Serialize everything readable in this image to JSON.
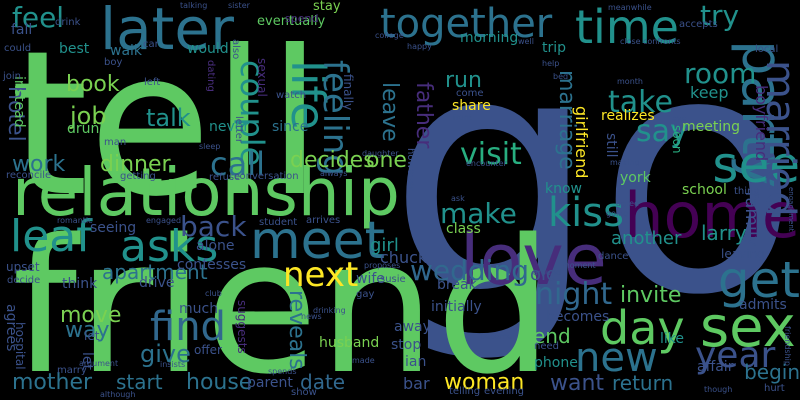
{
  "colors": {
    "background": "#000000",
    "palette": [
      "#5ec962",
      "#3b528b",
      "#21918c",
      "#440154",
      "#fde725",
      "#2c728e",
      "#472d7b",
      "#7ad151",
      "#28ae80",
      "#31688e"
    ]
  },
  "words": [
    {
      "text": "go",
      "color": "#3b528b"
    },
    {
      "text": "tell",
      "color": "#5ec962"
    },
    {
      "text": "friend",
      "color": "#5ec962"
    },
    {
      "text": "relationship",
      "color": "#5ec962"
    },
    {
      "text": "love",
      "color": "#472d7b"
    },
    {
      "text": "later",
      "color": "#2c728e"
    },
    {
      "text": "meet",
      "color": "#2c728e"
    },
    {
      "text": "home",
      "color": "#440154"
    },
    {
      "text": "party",
      "color": "#2c728e"
    },
    {
      "text": "together",
      "color": "#2c728e"
    },
    {
      "text": "time",
      "color": "#21918c"
    },
    {
      "text": "get",
      "color": "#2c728e"
    },
    {
      "text": "day",
      "color": "#5ec962"
    },
    {
      "text": "sex",
      "color": "#5ec962"
    },
    {
      "text": "see",
      "color": "#21918c"
    },
    {
      "text": "kiss",
      "color": "#21918c"
    },
    {
      "text": "married",
      "color": "#3b528b"
    },
    {
      "text": "life",
      "color": "#21918c"
    },
    {
      "text": "leaf",
      "color": "#21918c"
    },
    {
      "text": "asks",
      "color": "#21918c"
    },
    {
      "text": "next",
      "color": "#fde725"
    },
    {
      "text": "find",
      "color": "#31688e"
    },
    {
      "text": "feeling",
      "color": "#2c728e"
    },
    {
      "text": "couple",
      "color": "#21918c"
    },
    {
      "text": "new",
      "color": "#2c728e"
    },
    {
      "text": "year",
      "color": "#3b528b"
    },
    {
      "text": "night",
      "color": "#31688e"
    },
    {
      "text": "wedding",
      "color": "#31688e"
    },
    {
      "text": "make",
      "color": "#21918c"
    },
    {
      "text": "back",
      "color": "#3b528b"
    },
    {
      "text": "call",
      "color": "#2c728e"
    },
    {
      "text": "visit",
      "color": "#28ae80"
    },
    {
      "text": "take",
      "color": "#21918c"
    },
    {
      "text": "say",
      "color": "#21918c"
    },
    {
      "text": "room",
      "color": "#21918c"
    },
    {
      "text": "try",
      "color": "#21918c"
    },
    {
      "text": "feel",
      "color": "#21918c"
    },
    {
      "text": "book",
      "color": "#7ad151"
    },
    {
      "text": "talk",
      "color": "#21918c"
    },
    {
      "text": "job",
      "color": "#7ad151"
    },
    {
      "text": "work",
      "color": "#2c728e"
    },
    {
      "text": "dinner",
      "color": "#7ad151"
    },
    {
      "text": "decides",
      "color": "#7ad151"
    },
    {
      "text": "one",
      "color": "#7ad151"
    },
    {
      "text": "leave",
      "color": "#2c728e"
    },
    {
      "text": "father",
      "color": "#472d7b"
    },
    {
      "text": "marriage",
      "color": "#2c728e"
    },
    {
      "text": "run",
      "color": "#21918c"
    },
    {
      "text": "apartment",
      "color": "#2c728e"
    },
    {
      "text": "reveals",
      "color": "#2c728e"
    },
    {
      "text": "invite",
      "color": "#5ec962"
    },
    {
      "text": "move",
      "color": "#7ad151"
    },
    {
      "text": "way",
      "color": "#2c728e"
    },
    {
      "text": "give",
      "color": "#2c728e"
    },
    {
      "text": "mother",
      "color": "#2c728e"
    },
    {
      "text": "start",
      "color": "#2c728e"
    },
    {
      "text": "house",
      "color": "#2c728e"
    },
    {
      "text": "date",
      "color": "#31688e"
    },
    {
      "text": "woman",
      "color": "#fde725"
    },
    {
      "text": "end",
      "color": "#5ec962"
    },
    {
      "text": "want",
      "color": "#3b528b"
    },
    {
      "text": "return",
      "color": "#2c728e"
    },
    {
      "text": "begin",
      "color": "#2c728e"
    },
    {
      "text": "hotel",
      "color": "#3b528b"
    },
    {
      "text": "girl",
      "color": "#21918c"
    },
    {
      "text": "chuck",
      "color": "#3b528b"
    },
    {
      "text": "larry",
      "color": "#21918c"
    },
    {
      "text": "another",
      "color": "#21918c"
    },
    {
      "text": "old",
      "color": "#3b528b"
    },
    {
      "text": "family",
      "color": "#3b528b"
    },
    {
      "text": "boyfriend",
      "color": "#472d7b"
    },
    {
      "text": "girlfriend",
      "color": "#fde725"
    },
    {
      "text": "share",
      "color": "#fde725"
    },
    {
      "text": "realizes",
      "color": "#fde725"
    },
    {
      "text": "class",
      "color": "#7ad151"
    },
    {
      "text": "keep",
      "color": "#21918c"
    },
    {
      "text": "meeting",
      "color": "#7ad151"
    },
    {
      "text": "york",
      "color": "#5ec962"
    },
    {
      "text": "know",
      "color": "#21918c"
    },
    {
      "text": "school",
      "color": "#7ad151"
    },
    {
      "text": "soon",
      "color": "#28ae80"
    },
    {
      "text": "still",
      "color": "#3b528b"
    },
    {
      "text": "trip",
      "color": "#21918c"
    },
    {
      "text": "morning",
      "color": "#21918c"
    },
    {
      "text": "walk",
      "color": "#2c728e"
    },
    {
      "text": "best",
      "color": "#21918c"
    },
    {
      "text": "fall",
      "color": "#3b528b"
    },
    {
      "text": "would",
      "color": "#21918c"
    },
    {
      "text": "never",
      "color": "#21918c"
    },
    {
      "text": "since",
      "color": "#2c728e"
    },
    {
      "text": "drunk",
      "color": "#5ec962"
    },
    {
      "text": "eventually",
      "color": "#5ec962"
    },
    {
      "text": "stay",
      "color": "#7ad151"
    },
    {
      "text": "spend",
      "color": "#472d7b"
    },
    {
      "text": "instead",
      "color": "#5ec962"
    },
    {
      "text": "finally",
      "color": "#3b528b"
    },
    {
      "text": "sexual",
      "color": "#472d7b"
    },
    {
      "text": "confesses",
      "color": "#3b528b"
    },
    {
      "text": "alone",
      "color": "#3b528b"
    },
    {
      "text": "seeing",
      "color": "#3b528b"
    },
    {
      "text": "wife",
      "color": "#3b528b"
    },
    {
      "text": "break",
      "color": "#3b528b"
    },
    {
      "text": "initially",
      "color": "#3b528b"
    },
    {
      "text": "husband",
      "color": "#7ad151"
    },
    {
      "text": "suggests",
      "color": "#472d7b"
    },
    {
      "text": "parent",
      "color": "#3b528b"
    },
    {
      "text": "away",
      "color": "#3b528b"
    },
    {
      "text": "ian",
      "color": "#3b528b"
    },
    {
      "text": "bar",
      "color": "#3b528b"
    },
    {
      "text": "phone",
      "color": "#21918c"
    },
    {
      "text": "becomes",
      "color": "#3b528b"
    },
    {
      "text": "like",
      "color": "#21918c"
    },
    {
      "text": "affair",
      "color": "#3b528b"
    },
    {
      "text": "admits",
      "color": "#3b528b"
    },
    {
      "text": "drive",
      "color": "#3b528b"
    },
    {
      "text": "think",
      "color": "#3b528b"
    },
    {
      "text": "much",
      "color": "#3b528b"
    },
    {
      "text": "agrees",
      "color": "#3b528b"
    },
    {
      "text": "upset",
      "color": "#3b528b"
    },
    {
      "text": "hospital",
      "color": "#3b528b"
    },
    {
      "text": "let",
      "color": "#3b528b"
    },
    {
      "text": "offer",
      "color": "#3b528b"
    },
    {
      "text": "stop",
      "color": "#3b528b"
    },
    {
      "text": "show",
      "color": "#3b528b"
    },
    {
      "text": "dating",
      "color": "#472d7b"
    },
    {
      "text": "watch",
      "color": "#3b528b"
    },
    {
      "text": "letter",
      "color": "#3b528b"
    },
    {
      "text": "man",
      "color": "#3b528b"
    },
    {
      "text": "reconcile",
      "color": "#3b528b"
    },
    {
      "text": "refuse",
      "color": "#3b528b"
    },
    {
      "text": "conversation",
      "color": "#3b528b"
    },
    {
      "text": "leaving",
      "color": "#3b528b"
    },
    {
      "text": "dance",
      "color": "#3b528b"
    },
    {
      "text": "accepts",
      "color": "#3b528b"
    },
    {
      "text": "local",
      "color": "#3b528b"
    },
    {
      "text": "could",
      "color": "#3b528b"
    },
    {
      "text": "join",
      "color": "#3b528b"
    },
    {
      "text": "boy",
      "color": "#3b528b"
    },
    {
      "text": "car",
      "color": "#3b528b"
    },
    {
      "text": "left",
      "color": "#3b528b"
    },
    {
      "text": "also",
      "color": "#3b528b"
    },
    {
      "text": "drink",
      "color": "#3b528b"
    },
    {
      "text": "talking",
      "color": "#3b528b"
    },
    {
      "text": "sister",
      "color": "#3b528b"
    },
    {
      "text": "friendship",
      "color": "#3b528b"
    },
    {
      "text": "meanwhile",
      "color": "#3b528b"
    },
    {
      "text": "college",
      "color": "#3b528b"
    },
    {
      "text": "happy",
      "color": "#3b528b"
    },
    {
      "text": "well",
      "color": "#3b528b"
    },
    {
      "text": "help",
      "color": "#3b528b"
    },
    {
      "text": "front",
      "color": "#3b528b"
    },
    {
      "text": "bed",
      "color": "#3b528b"
    },
    {
      "text": "month",
      "color": "#3b528b"
    },
    {
      "text": "close",
      "color": "#3b528b"
    },
    {
      "text": "confronts",
      "color": "#3b528b"
    },
    {
      "text": "eye",
      "color": "#3b528b"
    },
    {
      "text": "making",
      "color": "#3b528b"
    },
    {
      "text": "thing",
      "color": "#3b528b"
    },
    {
      "text": "agree",
      "color": "#3b528b"
    },
    {
      "text": "going",
      "color": "#3b528b"
    },
    {
      "text": "engagement",
      "color": "#3b528b"
    },
    {
      "text": "encounter",
      "color": "#3b528b"
    },
    {
      "text": "ask",
      "color": "#3b528b"
    },
    {
      "text": "come",
      "color": "#3b528b"
    },
    {
      "text": "however",
      "color": "#3b528b"
    },
    {
      "text": "daughter",
      "color": "#3b528b"
    },
    {
      "text": "always",
      "color": "#3b528b"
    },
    {
      "text": "sleep",
      "color": "#3b528b"
    },
    {
      "text": "getting",
      "color": "#3b528b"
    },
    {
      "text": "romantic",
      "color": "#3b528b"
    },
    {
      "text": "engaged",
      "color": "#3b528b"
    },
    {
      "text": "student",
      "color": "#3b528b"
    },
    {
      "text": "arrives",
      "color": "#3b528b"
    },
    {
      "text": "proposes",
      "color": "#3b528b"
    },
    {
      "text": "decide",
      "color": "#3b528b"
    },
    {
      "text": "club",
      "color": "#3b528b"
    },
    {
      "text": "gay",
      "color": "#3b528b"
    },
    {
      "text": "susie",
      "color": "#3b528b"
    },
    {
      "text": "drinking",
      "color": "#3b528b"
    },
    {
      "text": "news",
      "color": "#3b528b"
    },
    {
      "text": "made",
      "color": "#3b528b"
    },
    {
      "text": "become",
      "color": "#3b528b"
    },
    {
      "text": "need",
      "color": "#3b528b"
    },
    {
      "text": "around",
      "color": "#3b528b"
    },
    {
      "text": "moment",
      "color": "#3b528b"
    },
    {
      "text": "though",
      "color": "#3b528b"
    },
    {
      "text": "hurt",
      "color": "#3b528b"
    },
    {
      "text": "marry",
      "color": "#3b528b"
    },
    {
      "text": "argument",
      "color": "#3b528b"
    },
    {
      "text": "insists",
      "color": "#3b528b"
    },
    {
      "text": "spends",
      "color": "#3b528b"
    },
    {
      "text": "telling",
      "color": "#3b528b"
    },
    {
      "text": "evening",
      "color": "#3b528b"
    },
    {
      "text": "although",
      "color": "#3b528b"
    },
    {
      "text": "let",
      "color": "#3b528b"
    }
  ]
}
